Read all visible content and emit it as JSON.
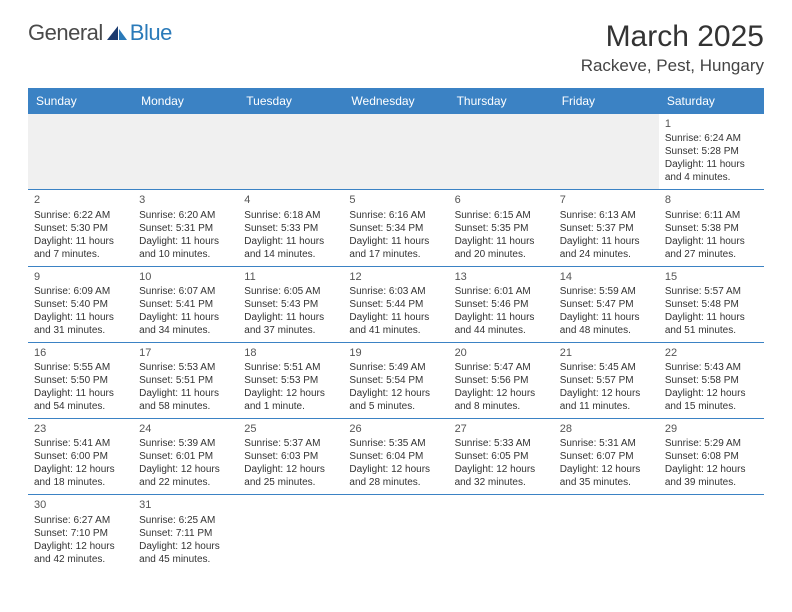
{
  "logo": {
    "text1": "General",
    "text2": "Blue"
  },
  "title": "March 2025",
  "location": "Rackeve, Pest, Hungary",
  "header_bg": "#3b82c4",
  "header_text_color": "#ffffff",
  "border_color": "#3b82c4",
  "days": [
    "Sunday",
    "Monday",
    "Tuesday",
    "Wednesday",
    "Thursday",
    "Friday",
    "Saturday"
  ],
  "cells": [
    {
      "n": "",
      "l": []
    },
    {
      "n": "",
      "l": []
    },
    {
      "n": "",
      "l": []
    },
    {
      "n": "",
      "l": []
    },
    {
      "n": "",
      "l": []
    },
    {
      "n": "",
      "l": []
    },
    {
      "n": "1",
      "l": [
        "Sunrise: 6:24 AM",
        "Sunset: 5:28 PM",
        "Daylight: 11 hours",
        "and 4 minutes."
      ]
    },
    {
      "n": "2",
      "l": [
        "Sunrise: 6:22 AM",
        "Sunset: 5:30 PM",
        "Daylight: 11 hours",
        "and 7 minutes."
      ]
    },
    {
      "n": "3",
      "l": [
        "Sunrise: 6:20 AM",
        "Sunset: 5:31 PM",
        "Daylight: 11 hours",
        "and 10 minutes."
      ]
    },
    {
      "n": "4",
      "l": [
        "Sunrise: 6:18 AM",
        "Sunset: 5:33 PM",
        "Daylight: 11 hours",
        "and 14 minutes."
      ]
    },
    {
      "n": "5",
      "l": [
        "Sunrise: 6:16 AM",
        "Sunset: 5:34 PM",
        "Daylight: 11 hours",
        "and 17 minutes."
      ]
    },
    {
      "n": "6",
      "l": [
        "Sunrise: 6:15 AM",
        "Sunset: 5:35 PM",
        "Daylight: 11 hours",
        "and 20 minutes."
      ]
    },
    {
      "n": "7",
      "l": [
        "Sunrise: 6:13 AM",
        "Sunset: 5:37 PM",
        "Daylight: 11 hours",
        "and 24 minutes."
      ]
    },
    {
      "n": "8",
      "l": [
        "Sunrise: 6:11 AM",
        "Sunset: 5:38 PM",
        "Daylight: 11 hours",
        "and 27 minutes."
      ]
    },
    {
      "n": "9",
      "l": [
        "Sunrise: 6:09 AM",
        "Sunset: 5:40 PM",
        "Daylight: 11 hours",
        "and 31 minutes."
      ]
    },
    {
      "n": "10",
      "l": [
        "Sunrise: 6:07 AM",
        "Sunset: 5:41 PM",
        "Daylight: 11 hours",
        "and 34 minutes."
      ]
    },
    {
      "n": "11",
      "l": [
        "Sunrise: 6:05 AM",
        "Sunset: 5:43 PM",
        "Daylight: 11 hours",
        "and 37 minutes."
      ]
    },
    {
      "n": "12",
      "l": [
        "Sunrise: 6:03 AM",
        "Sunset: 5:44 PM",
        "Daylight: 11 hours",
        "and 41 minutes."
      ]
    },
    {
      "n": "13",
      "l": [
        "Sunrise: 6:01 AM",
        "Sunset: 5:46 PM",
        "Daylight: 11 hours",
        "and 44 minutes."
      ]
    },
    {
      "n": "14",
      "l": [
        "Sunrise: 5:59 AM",
        "Sunset: 5:47 PM",
        "Daylight: 11 hours",
        "and 48 minutes."
      ]
    },
    {
      "n": "15",
      "l": [
        "Sunrise: 5:57 AM",
        "Sunset: 5:48 PM",
        "Daylight: 11 hours",
        "and 51 minutes."
      ]
    },
    {
      "n": "16",
      "l": [
        "Sunrise: 5:55 AM",
        "Sunset: 5:50 PM",
        "Daylight: 11 hours",
        "and 54 minutes."
      ]
    },
    {
      "n": "17",
      "l": [
        "Sunrise: 5:53 AM",
        "Sunset: 5:51 PM",
        "Daylight: 11 hours",
        "and 58 minutes."
      ]
    },
    {
      "n": "18",
      "l": [
        "Sunrise: 5:51 AM",
        "Sunset: 5:53 PM",
        "Daylight: 12 hours",
        "and 1 minute."
      ]
    },
    {
      "n": "19",
      "l": [
        "Sunrise: 5:49 AM",
        "Sunset: 5:54 PM",
        "Daylight: 12 hours",
        "and 5 minutes."
      ]
    },
    {
      "n": "20",
      "l": [
        "Sunrise: 5:47 AM",
        "Sunset: 5:56 PM",
        "Daylight: 12 hours",
        "and 8 minutes."
      ]
    },
    {
      "n": "21",
      "l": [
        "Sunrise: 5:45 AM",
        "Sunset: 5:57 PM",
        "Daylight: 12 hours",
        "and 11 minutes."
      ]
    },
    {
      "n": "22",
      "l": [
        "Sunrise: 5:43 AM",
        "Sunset: 5:58 PM",
        "Daylight: 12 hours",
        "and 15 minutes."
      ]
    },
    {
      "n": "23",
      "l": [
        "Sunrise: 5:41 AM",
        "Sunset: 6:00 PM",
        "Daylight: 12 hours",
        "and 18 minutes."
      ]
    },
    {
      "n": "24",
      "l": [
        "Sunrise: 5:39 AM",
        "Sunset: 6:01 PM",
        "Daylight: 12 hours",
        "and 22 minutes."
      ]
    },
    {
      "n": "25",
      "l": [
        "Sunrise: 5:37 AM",
        "Sunset: 6:03 PM",
        "Daylight: 12 hours",
        "and 25 minutes."
      ]
    },
    {
      "n": "26",
      "l": [
        "Sunrise: 5:35 AM",
        "Sunset: 6:04 PM",
        "Daylight: 12 hours",
        "and 28 minutes."
      ]
    },
    {
      "n": "27",
      "l": [
        "Sunrise: 5:33 AM",
        "Sunset: 6:05 PM",
        "Daylight: 12 hours",
        "and 32 minutes."
      ]
    },
    {
      "n": "28",
      "l": [
        "Sunrise: 5:31 AM",
        "Sunset: 6:07 PM",
        "Daylight: 12 hours",
        "and 35 minutes."
      ]
    },
    {
      "n": "29",
      "l": [
        "Sunrise: 5:29 AM",
        "Sunset: 6:08 PM",
        "Daylight: 12 hours",
        "and 39 minutes."
      ]
    },
    {
      "n": "30",
      "l": [
        "Sunrise: 6:27 AM",
        "Sunset: 7:10 PM",
        "Daylight: 12 hours",
        "and 42 minutes."
      ]
    },
    {
      "n": "31",
      "l": [
        "Sunrise: 6:25 AM",
        "Sunset: 7:11 PM",
        "Daylight: 12 hours",
        "and 45 minutes."
      ]
    },
    {
      "n": "",
      "l": []
    },
    {
      "n": "",
      "l": []
    },
    {
      "n": "",
      "l": []
    },
    {
      "n": "",
      "l": []
    },
    {
      "n": "",
      "l": []
    }
  ]
}
